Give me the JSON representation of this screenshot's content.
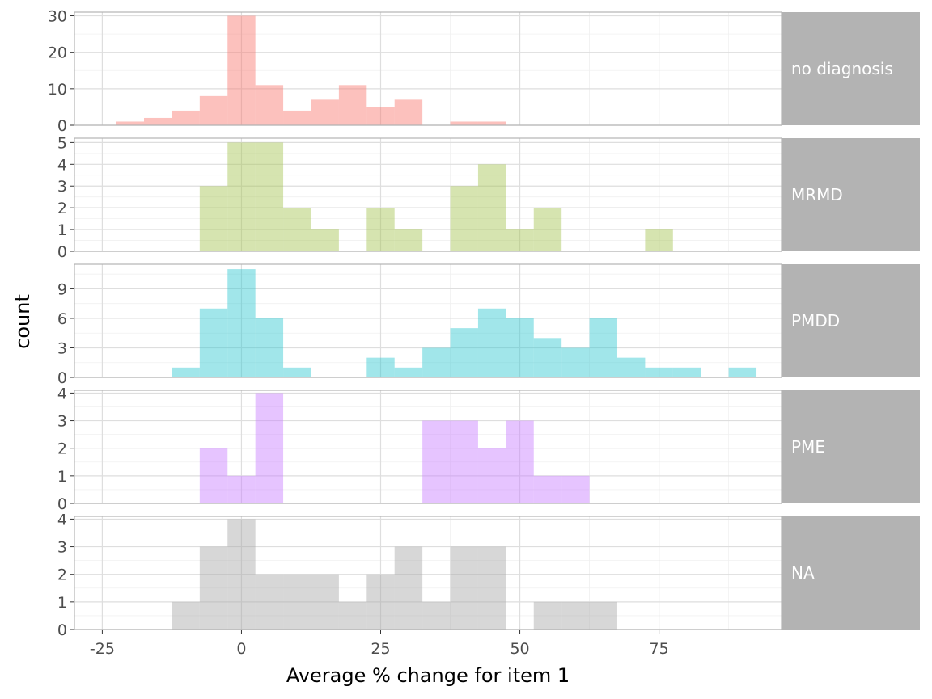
{
  "chart_data": {
    "type": "bar",
    "subtype": "faceted-histogram",
    "title": "",
    "xlabel": "Average % change for item 1",
    "ylabel": "count",
    "xlim": [
      -30,
      97
    ],
    "x_ticks": [
      -25,
      0,
      25,
      50,
      75
    ],
    "x_tick_labels": [
      "-25",
      "0",
      "25",
      "50",
      "75"
    ],
    "bin_width": 5,
    "grid": true,
    "legend": "none",
    "strip_color": "#b3b3b3",
    "panels": [
      {
        "name": "no diagnosis",
        "color": "#F8766D",
        "ylim": [
          0,
          31
        ],
        "y_ticks": [
          0,
          10,
          20,
          30
        ],
        "bins": [
          {
            "x0": -22.5,
            "x1": -17.5,
            "count": 1
          },
          {
            "x0": -17.5,
            "x1": -12.5,
            "count": 2
          },
          {
            "x0": -12.5,
            "x1": -7.5,
            "count": 4
          },
          {
            "x0": -7.5,
            "x1": -2.5,
            "count": 8
          },
          {
            "x0": -2.5,
            "x1": 2.5,
            "count": 30
          },
          {
            "x0": 2.5,
            "x1": 7.5,
            "count": 11
          },
          {
            "x0": 7.5,
            "x1": 12.5,
            "count": 4
          },
          {
            "x0": 12.5,
            "x1": 17.5,
            "count": 7
          },
          {
            "x0": 17.5,
            "x1": 22.5,
            "count": 11
          },
          {
            "x0": 22.5,
            "x1": 27.5,
            "count": 5
          },
          {
            "x0": 27.5,
            "x1": 32.5,
            "count": 7
          },
          {
            "x0": 37.5,
            "x1": 42.5,
            "count": 1
          },
          {
            "x0": 42.5,
            "x1": 47.5,
            "count": 1
          }
        ]
      },
      {
        "name": "MRMD",
        "color": "#A3C450",
        "ylim": [
          0,
          5.2
        ],
        "y_ticks": [
          0,
          1,
          2,
          3,
          4,
          5
        ],
        "bins": [
          {
            "x0": -7.5,
            "x1": -2.5,
            "count": 3
          },
          {
            "x0": -2.5,
            "x1": 2.5,
            "count": 5
          },
          {
            "x0": 2.5,
            "x1": 7.5,
            "count": 5
          },
          {
            "x0": 7.5,
            "x1": 12.5,
            "count": 2
          },
          {
            "x0": 12.5,
            "x1": 17.5,
            "count": 1
          },
          {
            "x0": 22.5,
            "x1": 27.5,
            "count": 2
          },
          {
            "x0": 27.5,
            "x1": 32.5,
            "count": 1
          },
          {
            "x0": 37.5,
            "x1": 42.5,
            "count": 3
          },
          {
            "x0": 42.5,
            "x1": 47.5,
            "count": 4
          },
          {
            "x0": 47.5,
            "x1": 52.5,
            "count": 1
          },
          {
            "x0": 52.5,
            "x1": 57.5,
            "count": 2
          },
          {
            "x0": 72.5,
            "x1": 77.5,
            "count": 1
          }
        ]
      },
      {
        "name": "PMDD",
        "color": "#2FC8D0",
        "ylim": [
          0,
          11.5
        ],
        "y_ticks": [
          0,
          3,
          6,
          9
        ],
        "bins": [
          {
            "x0": -12.5,
            "x1": -7.5,
            "count": 1
          },
          {
            "x0": -7.5,
            "x1": -2.5,
            "count": 7
          },
          {
            "x0": -2.5,
            "x1": 2.5,
            "count": 11
          },
          {
            "x0": 2.5,
            "x1": 7.5,
            "count": 6
          },
          {
            "x0": 7.5,
            "x1": 12.5,
            "count": 1
          },
          {
            "x0": 22.5,
            "x1": 27.5,
            "count": 2
          },
          {
            "x0": 27.5,
            "x1": 32.5,
            "count": 1
          },
          {
            "x0": 32.5,
            "x1": 37.5,
            "count": 3
          },
          {
            "x0": 37.5,
            "x1": 42.5,
            "count": 5
          },
          {
            "x0": 42.5,
            "x1": 47.5,
            "count": 7
          },
          {
            "x0": 47.5,
            "x1": 52.5,
            "count": 6
          },
          {
            "x0": 52.5,
            "x1": 57.5,
            "count": 4
          },
          {
            "x0": 57.5,
            "x1": 62.5,
            "count": 3
          },
          {
            "x0": 62.5,
            "x1": 67.5,
            "count": 6
          },
          {
            "x0": 67.5,
            "x1": 72.5,
            "count": 2
          },
          {
            "x0": 72.5,
            "x1": 77.5,
            "count": 1
          },
          {
            "x0": 77.5,
            "x1": 82.5,
            "count": 1
          },
          {
            "x0": 87.5,
            "x1": 92.5,
            "count": 1
          }
        ]
      },
      {
        "name": "PME",
        "color": "#C77CFF",
        "ylim": [
          0,
          4.1
        ],
        "y_ticks": [
          0,
          1,
          2,
          3,
          4
        ],
        "bins": [
          {
            "x0": -7.5,
            "x1": -2.5,
            "count": 2
          },
          {
            "x0": -2.5,
            "x1": 2.5,
            "count": 1
          },
          {
            "x0": 2.5,
            "x1": 7.5,
            "count": 4
          },
          {
            "x0": 32.5,
            "x1": 37.5,
            "count": 3
          },
          {
            "x0": 37.5,
            "x1": 42.5,
            "count": 3
          },
          {
            "x0": 42.5,
            "x1": 47.5,
            "count": 2
          },
          {
            "x0": 47.5,
            "x1": 52.5,
            "count": 3
          },
          {
            "x0": 52.5,
            "x1": 57.5,
            "count": 1
          },
          {
            "x0": 57.5,
            "x1": 62.5,
            "count": 1
          }
        ]
      },
      {
        "name": "NA",
        "color": "#A6A6A6",
        "ylim": [
          0,
          4.1
        ],
        "y_ticks": [
          0,
          1,
          2,
          3,
          4
        ],
        "bins": [
          {
            "x0": -12.5,
            "x1": -7.5,
            "count": 1
          },
          {
            "x0": -7.5,
            "x1": -2.5,
            "count": 3
          },
          {
            "x0": -2.5,
            "x1": 2.5,
            "count": 4
          },
          {
            "x0": 2.5,
            "x1": 7.5,
            "count": 2
          },
          {
            "x0": 7.5,
            "x1": 12.5,
            "count": 2
          },
          {
            "x0": 12.5,
            "x1": 17.5,
            "count": 2
          },
          {
            "x0": 17.5,
            "x1": 22.5,
            "count": 1
          },
          {
            "x0": 22.5,
            "x1": 27.5,
            "count": 2
          },
          {
            "x0": 27.5,
            "x1": 32.5,
            "count": 3
          },
          {
            "x0": 32.5,
            "x1": 37.5,
            "count": 1
          },
          {
            "x0": 37.5,
            "x1": 42.5,
            "count": 3
          },
          {
            "x0": 42.5,
            "x1": 47.5,
            "count": 3
          },
          {
            "x0": 52.5,
            "x1": 57.5,
            "count": 1
          },
          {
            "x0": 57.5,
            "x1": 62.5,
            "count": 1
          },
          {
            "x0": 62.5,
            "x1": 67.5,
            "count": 1
          }
        ]
      }
    ]
  }
}
